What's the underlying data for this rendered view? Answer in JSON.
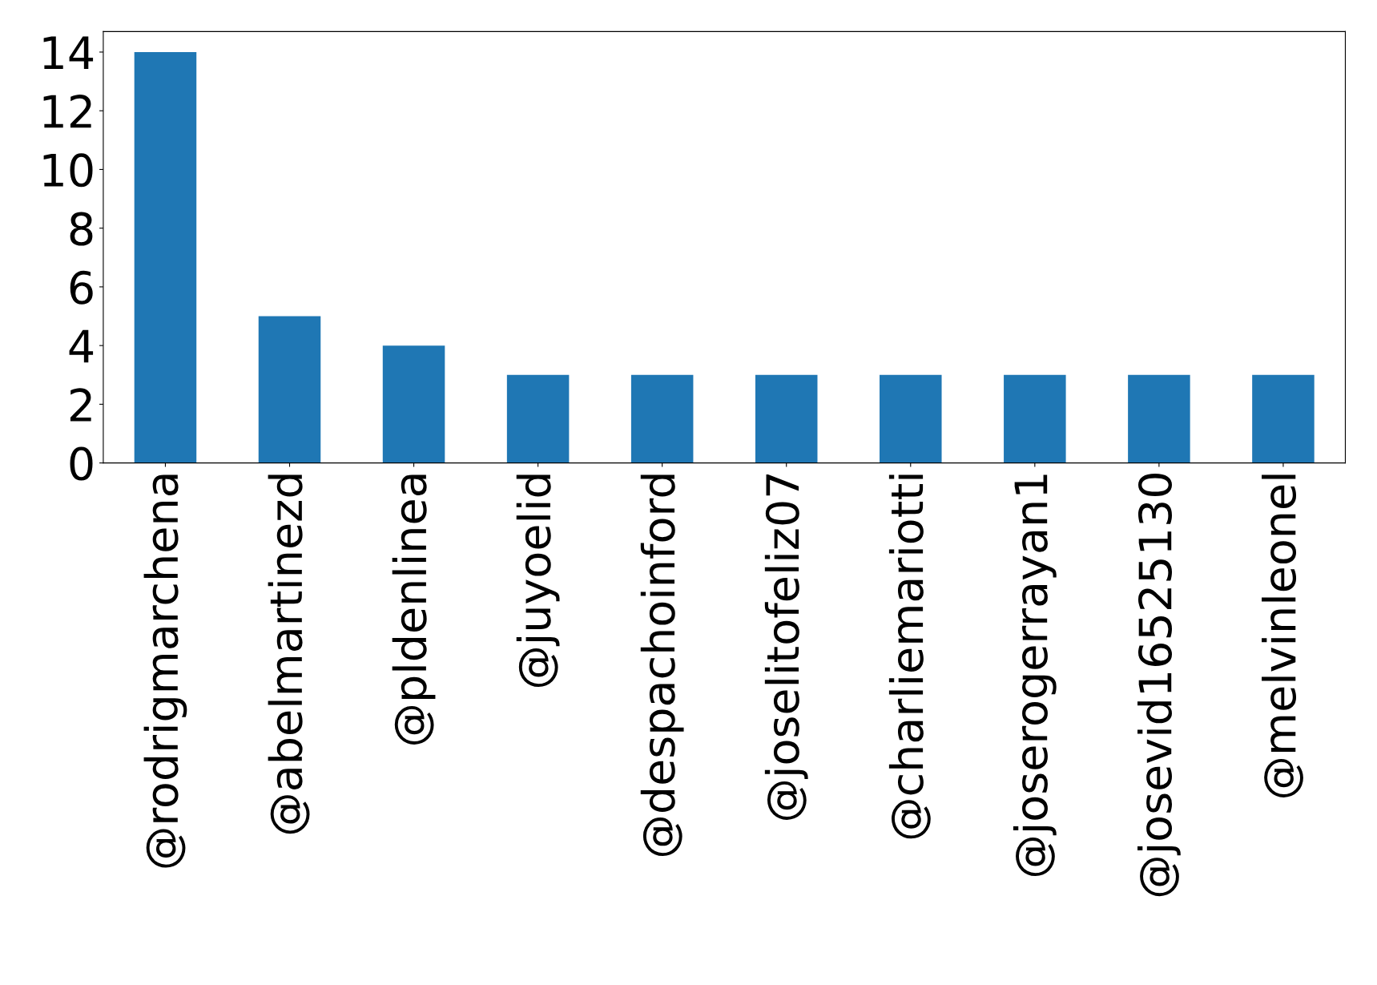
{
  "chart_data": {
    "type": "bar",
    "categories": [
      "@rodrigmarchena",
      "@abelmartinezd",
      "@pldenlinea",
      "@juyoelid",
      "@despachoinford",
      "@joselitofeliz07",
      "@charliemariotti",
      "@joserogerrayan1",
      "@josevid16525130",
      "@melvinleonel"
    ],
    "values": [
      14,
      5,
      4,
      3,
      3,
      3,
      3,
      3,
      3,
      3
    ],
    "color": "#1f77b4",
    "ylim": [
      0,
      14.7
    ],
    "yticks": [
      0,
      2,
      4,
      6,
      8,
      10,
      12,
      14
    ],
    "grid": false
  }
}
